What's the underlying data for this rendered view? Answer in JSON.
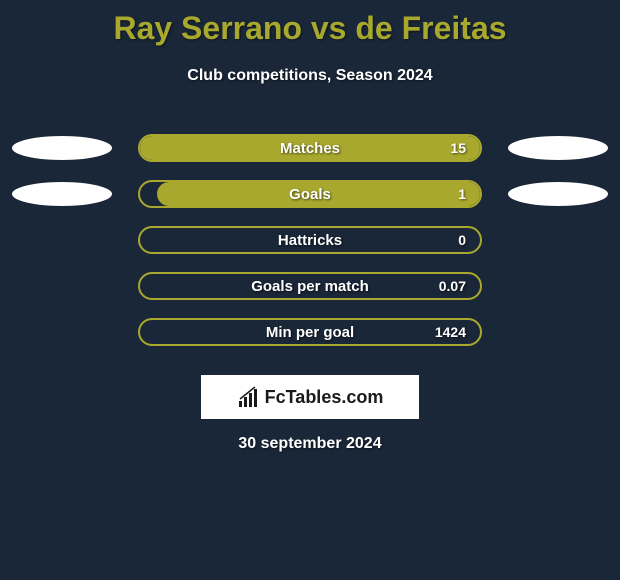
{
  "title": "Ray Serrano vs de Freitas",
  "subtitle": "Club competitions, Season 2024",
  "date": "30 september 2024",
  "logo_text": "FcTables.com",
  "colors": {
    "background": "#1a2738",
    "accent": "#a8a82e",
    "text": "#ffffff",
    "ellipse": "#ffffff"
  },
  "stats": [
    {
      "label": "Matches",
      "value": "15",
      "fill_percent": 100,
      "show_left_ellipse": true,
      "show_right_ellipse": true
    },
    {
      "label": "Goals",
      "value": "1",
      "fill_percent": 95,
      "show_left_ellipse": true,
      "show_right_ellipse": true
    },
    {
      "label": "Hattricks",
      "value": "0",
      "fill_percent": 0,
      "show_left_ellipse": false,
      "show_right_ellipse": false
    },
    {
      "label": "Goals per match",
      "value": "0.07",
      "fill_percent": 0,
      "show_left_ellipse": false,
      "show_right_ellipse": false
    },
    {
      "label": "Min per goal",
      "value": "1424",
      "fill_percent": 0,
      "show_left_ellipse": false,
      "show_right_ellipse": false
    }
  ]
}
